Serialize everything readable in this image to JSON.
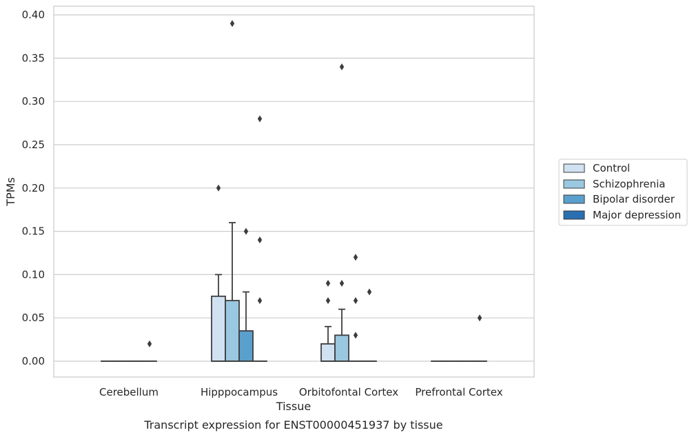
{
  "caption": "Transcript expression for ENST00000451937 by tissue",
  "chart_data": {
    "type": "box",
    "xlabel": "Tissue",
    "ylabel": "TPMs",
    "ylim": [
      -0.019,
      0.41
    ],
    "yticks": [
      0.0,
      0.05,
      0.1,
      0.15,
      0.2,
      0.25,
      0.3,
      0.35,
      0.4
    ],
    "ytick_labels": [
      "0.00",
      "0.05",
      "0.10",
      "0.15",
      "0.20",
      "0.25",
      "0.30",
      "0.35",
      "0.40"
    ],
    "grid": true,
    "legend_position": "right",
    "categories": [
      "Cerebellum",
      "Hipppocampus",
      "Orbitofontal Cortex",
      "Prefrontal Cortex"
    ],
    "series": [
      {
        "name": "Control",
        "color": "#d0e1f2",
        "boxes": [
          {
            "q1": 0,
            "median": 0,
            "q3": 0,
            "whisker_low": 0,
            "whisker_high": 0,
            "outliers": []
          },
          {
            "q1": 0,
            "median": 0,
            "q3": 0.075,
            "whisker_low": 0,
            "whisker_high": 0.1,
            "outliers": [
              0.2
            ]
          },
          {
            "q1": 0,
            "median": 0,
            "q3": 0.02,
            "whisker_low": 0,
            "whisker_high": 0.04,
            "outliers": [
              0.07,
              0.09
            ]
          },
          {
            "q1": 0,
            "median": 0,
            "q3": 0,
            "whisker_low": 0,
            "whisker_high": 0,
            "outliers": []
          }
        ]
      },
      {
        "name": "Schizophrenia",
        "color": "#9ac8e0",
        "boxes": [
          {
            "q1": 0,
            "median": 0,
            "q3": 0,
            "whisker_low": 0,
            "whisker_high": 0,
            "outliers": []
          },
          {
            "q1": 0,
            "median": 0,
            "q3": 0.07,
            "whisker_low": 0,
            "whisker_high": 0.16,
            "outliers": [
              0.39
            ]
          },
          {
            "q1": 0,
            "median": 0,
            "q3": 0.03,
            "whisker_low": 0,
            "whisker_high": 0.06,
            "outliers": [
              0.09,
              0.34
            ]
          },
          {
            "q1": 0,
            "median": 0,
            "q3": 0,
            "whisker_low": 0,
            "whisker_high": 0,
            "outliers": []
          }
        ]
      },
      {
        "name": "Bipolar disorder",
        "color": "#5aa0cd",
        "boxes": [
          {
            "q1": 0,
            "median": 0,
            "q3": 0,
            "whisker_low": 0,
            "whisker_high": 0,
            "outliers": []
          },
          {
            "q1": 0,
            "median": 0,
            "q3": 0.035,
            "whisker_low": 0,
            "whisker_high": 0.08,
            "outliers": [
              0.15
            ]
          },
          {
            "q1": 0,
            "median": 0,
            "q3": 0,
            "whisker_low": 0,
            "whisker_high": 0,
            "outliers": [
              0.03,
              0.07,
              0.12
            ]
          },
          {
            "q1": 0,
            "median": 0,
            "q3": 0,
            "whisker_low": 0,
            "whisker_high": 0,
            "outliers": []
          }
        ]
      },
      {
        "name": "Major depression",
        "color": "#2a6fb1",
        "boxes": [
          {
            "q1": 0,
            "median": 0,
            "q3": 0,
            "whisker_low": 0,
            "whisker_high": 0,
            "outliers": [
              0.02
            ]
          },
          {
            "q1": 0,
            "median": 0,
            "q3": 0,
            "whisker_low": 0,
            "whisker_high": 0,
            "outliers": [
              0.07,
              0.14,
              0.28
            ]
          },
          {
            "q1": 0,
            "median": 0,
            "q3": 0,
            "whisker_low": 0,
            "whisker_high": 0,
            "outliers": [
              0.08
            ]
          },
          {
            "q1": 0,
            "median": 0,
            "q3": 0,
            "whisker_low": 0,
            "whisker_high": 0,
            "outliers": [
              0.05
            ]
          }
        ]
      }
    ]
  }
}
